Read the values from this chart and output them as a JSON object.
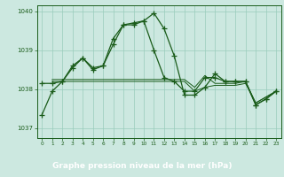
{
  "title": "Graphe pression niveau de la mer (hPa)",
  "background_color": "#cce8e0",
  "label_bg_color": "#2d7a5a",
  "grid_color": "#99ccbb",
  "line_color": "#1a5c1a",
  "xlim": [
    -0.5,
    23.5
  ],
  "ylim": [
    1036.75,
    1040.15
  ],
  "yticks": [
    1037,
    1038,
    1039,
    1040
  ],
  "xticks": [
    0,
    1,
    2,
    3,
    4,
    5,
    6,
    7,
    8,
    9,
    10,
    11,
    12,
    13,
    14,
    15,
    16,
    17,
    18,
    19,
    20,
    21,
    22,
    23
  ],
  "series1": {
    "x": [
      0,
      1,
      2,
      3,
      4,
      5,
      6,
      7,
      8,
      9,
      10,
      11,
      12,
      13,
      14,
      15,
      16,
      17,
      18,
      19,
      20,
      21,
      22,
      23
    ],
    "y": [
      1037.35,
      1037.95,
      1038.2,
      1038.6,
      1038.8,
      1038.55,
      1038.6,
      1039.3,
      1039.65,
      1039.7,
      1039.75,
      1039.95,
      1039.55,
      1038.85,
      1037.85,
      1037.85,
      1038.05,
      1038.4,
      1038.2,
      1038.2,
      1038.2,
      1037.6,
      1037.75,
      1037.95
    ]
  },
  "series2": {
    "x": [
      0,
      1,
      2,
      3,
      4,
      5,
      6,
      7,
      8,
      9,
      10,
      11,
      12,
      13,
      14,
      15,
      16,
      17,
      18,
      19,
      20,
      21,
      22,
      23
    ],
    "y": [
      1038.15,
      1038.15,
      1038.2,
      1038.55,
      1038.8,
      1038.5,
      1038.6,
      1039.15,
      1039.65,
      1039.65,
      1039.75,
      1039.0,
      1038.3,
      1038.2,
      1037.95,
      1037.95,
      1038.3,
      1038.3,
      1038.2,
      1038.2,
      1038.2,
      1037.6,
      1037.75,
      1037.95
    ]
  },
  "series3": {
    "x": [
      1,
      2,
      3,
      4,
      5,
      6,
      7,
      8,
      9,
      10,
      11,
      12,
      13,
      14,
      15,
      16,
      17,
      18,
      19,
      20,
      21,
      22,
      23
    ],
    "y": [
      1038.2,
      1038.2,
      1038.2,
      1038.2,
      1038.2,
      1038.2,
      1038.2,
      1038.2,
      1038.2,
      1038.2,
      1038.2,
      1038.2,
      1038.2,
      1038.2,
      1037.95,
      1038.05,
      1038.1,
      1038.1,
      1038.1,
      1038.15,
      1037.65,
      1037.8,
      1037.95
    ]
  },
  "series4": {
    "x": [
      1,
      2,
      3,
      4,
      5,
      6,
      7,
      8,
      9,
      10,
      11,
      12,
      13,
      14,
      15,
      16,
      17,
      18,
      19,
      20,
      21,
      22,
      23
    ],
    "y": [
      1038.25,
      1038.25,
      1038.25,
      1038.25,
      1038.25,
      1038.25,
      1038.25,
      1038.25,
      1038.25,
      1038.25,
      1038.25,
      1038.25,
      1038.25,
      1038.25,
      1038.05,
      1038.35,
      1038.15,
      1038.15,
      1038.15,
      1038.2,
      1037.65,
      1037.8,
      1037.95
    ]
  }
}
